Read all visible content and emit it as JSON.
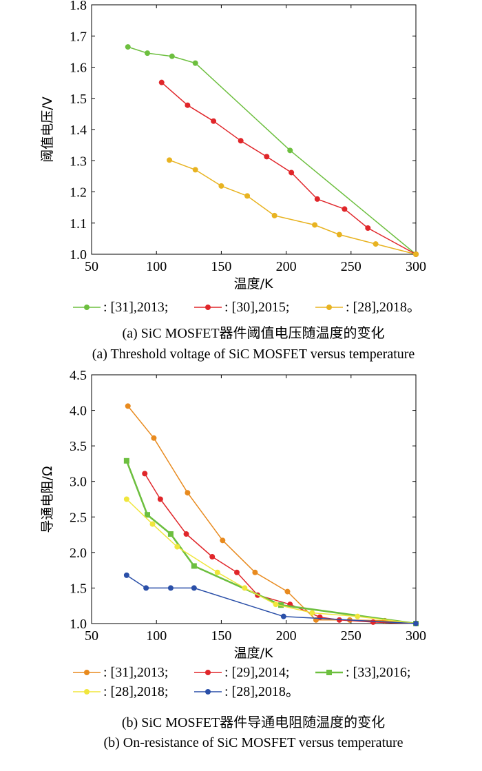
{
  "chart_data": [
    {
      "type": "line",
      "ylabel": "阈值电压/V",
      "xlabel": "温度/K",
      "xlim": [
        50,
        300
      ],
      "ylim": [
        1.0,
        1.8
      ],
      "xticks": [
        "50",
        "100",
        "150",
        "200",
        "250",
        "300"
      ],
      "yticks": [
        "1.0",
        "1.1",
        "1.2",
        "1.3",
        "1.4",
        "1.5",
        "1.6",
        "1.7",
        "1.8"
      ],
      "grid": false,
      "legend_position": "below",
      "series": [
        {
          "name": ": [31],2013;",
          "color": "#6dbf3f",
          "marker": "circle",
          "x": [
            78,
            93,
            112,
            130,
            203,
            300
          ],
          "y": [
            1.665,
            1.645,
            1.635,
            1.613,
            1.333,
            1.0
          ]
        },
        {
          "name": ": [30],2015;",
          "color": "#e0262a",
          "marker": "circle",
          "x": [
            104,
            124,
            144,
            165,
            185,
            204,
            224,
            245,
            263,
            300
          ],
          "y": [
            1.551,
            1.478,
            1.427,
            1.364,
            1.313,
            1.262,
            1.177,
            1.145,
            1.084,
            1.0
          ]
        },
        {
          "name": ": [28],2018。",
          "color": "#e8b321",
          "marker": "circle",
          "x": [
            110,
            130,
            150,
            170,
            191,
            222,
            241,
            269,
            300
          ],
          "y": [
            1.302,
            1.271,
            1.219,
            1.187,
            1.124,
            1.094,
            1.063,
            1.033,
            1.0
          ]
        }
      ],
      "caption_cn": "(a) SiC MOSFET器件阈值电压随温度的变化",
      "caption_en": "(a) Threshold voltage of SiC MOSFET versus temperature"
    },
    {
      "type": "line",
      "ylabel": "导通电阻/Ω",
      "xlabel": "温度/K",
      "xlim": [
        50,
        300
      ],
      "ylim": [
        1.0,
        4.5
      ],
      "xticks": [
        "50",
        "100",
        "150",
        "200",
        "250",
        "300"
      ],
      "yticks": [
        "1.0",
        "1.5",
        "2.0",
        "2.5",
        "3.0",
        "3.5",
        "4.0",
        "4.5"
      ],
      "grid": false,
      "legend_position": "below",
      "series": [
        {
          "name": ": [31],2013;",
          "color": "#e88a1e",
          "marker": "circle",
          "x": [
            78,
            98,
            124,
            151,
            176,
            201,
            223,
            249,
            276,
            300
          ],
          "y": [
            4.06,
            3.61,
            2.84,
            2.17,
            1.72,
            1.45,
            1.05,
            1.05,
            1.04,
            1.0
          ]
        },
        {
          "name": ": [29],2014;",
          "color": "#e0262a",
          "marker": "circle",
          "x": [
            91,
            103,
            123,
            143,
            162,
            178,
            203,
            226,
            241,
            267,
            300
          ],
          "y": [
            3.11,
            2.75,
            2.26,
            1.94,
            1.72,
            1.4,
            1.27,
            1.09,
            1.05,
            1.02,
            1.0
          ]
        },
        {
          "name": ": [33],2016;",
          "color": "#6dbf3f",
          "marker": "square",
          "x": [
            77,
            93,
            111,
            129,
            196,
            300
          ],
          "y": [
            3.29,
            2.53,
            2.26,
            1.81,
            1.26,
            1.0
          ]
        },
        {
          "name": ": [28],2018;",
          "color": "#f0e63c",
          "marker": "circle",
          "x": [
            77,
            97,
            116,
            147,
            168,
            192,
            220,
            255,
            300
          ],
          "y": [
            2.75,
            2.4,
            2.08,
            1.72,
            1.5,
            1.27,
            1.15,
            1.1,
            1.0
          ]
        },
        {
          "name": ": [28],2018。",
          "color": "#2a4fa8",
          "marker": "circle",
          "x": [
            77,
            92,
            111,
            129,
            198,
            300
          ],
          "y": [
            1.68,
            1.5,
            1.5,
            1.5,
            1.1,
            1.0
          ]
        }
      ],
      "caption_cn": "(b) SiC MOSFET器件导通电阻随温度的变化",
      "caption_en": "(b) On-resistance of SiC MOSFET versus temperature"
    }
  ]
}
